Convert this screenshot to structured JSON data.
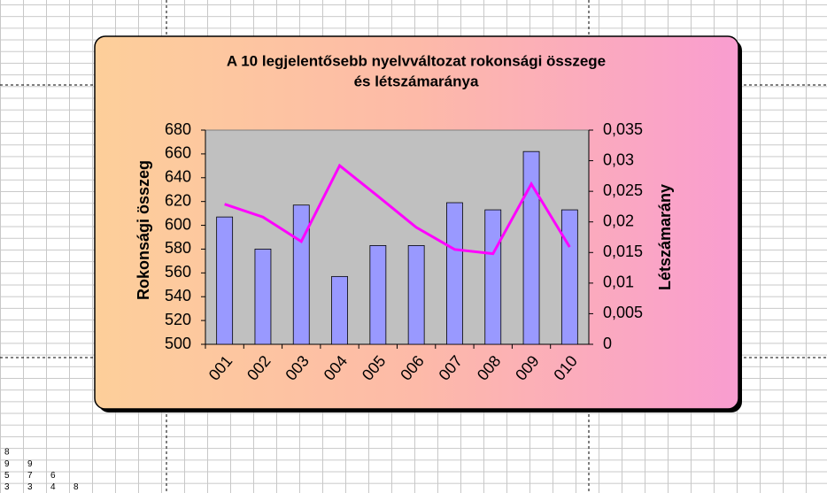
{
  "chart_data": {
    "type": "bar_line",
    "title": [
      "A 10 legjelentősebb nyelvváltozat rokonsági összege",
      "és létszámaránya"
    ],
    "y_label": "Rokonsági összeg",
    "y2_label": "Létszámarány",
    "categories": [
      "001",
      "002",
      "003",
      "004",
      "005",
      "006",
      "007",
      "008",
      "009",
      "010"
    ],
    "series": [
      {
        "type": "bar",
        "color": "#9999ff",
        "values": [
          607,
          580,
          617,
          557,
          583,
          583,
          619,
          613,
          662,
          613
        ]
      },
      {
        "type": "line",
        "axis": "y2",
        "color": "#ff00ff",
        "values": [
          0.0229,
          0.0208,
          0.0168,
          0.0292,
          0.0242,
          0.0191,
          0.0155,
          0.0148,
          0.0262,
          0.0159
        ]
      }
    ],
    "ylim": [
      500,
      680
    ],
    "yticks": [
      500,
      520,
      540,
      560,
      580,
      600,
      620,
      640,
      660,
      680
    ],
    "y2lim": [
      0,
      0.035
    ],
    "y2ticks": [
      0,
      {
        "value": 0.005,
        "label": "0,005"
      },
      {
        "value": 0.01,
        "label": "0,01"
      },
      {
        "value": 0.015,
        "label": "0,015"
      },
      {
        "value": 0.02,
        "label": "0,02"
      },
      {
        "value": 0.025,
        "label": "0,025"
      },
      {
        "value": 0.03,
        "label": "0,03"
      },
      {
        "value": 0.035,
        "label": "0,035"
      }
    ],
    "grid": false
  },
  "cells": [
    [
      "8"
    ],
    [
      "9",
      "9"
    ],
    [
      "5",
      "7",
      "6"
    ],
    [
      "3",
      "3",
      "4",
      "8"
    ]
  ]
}
